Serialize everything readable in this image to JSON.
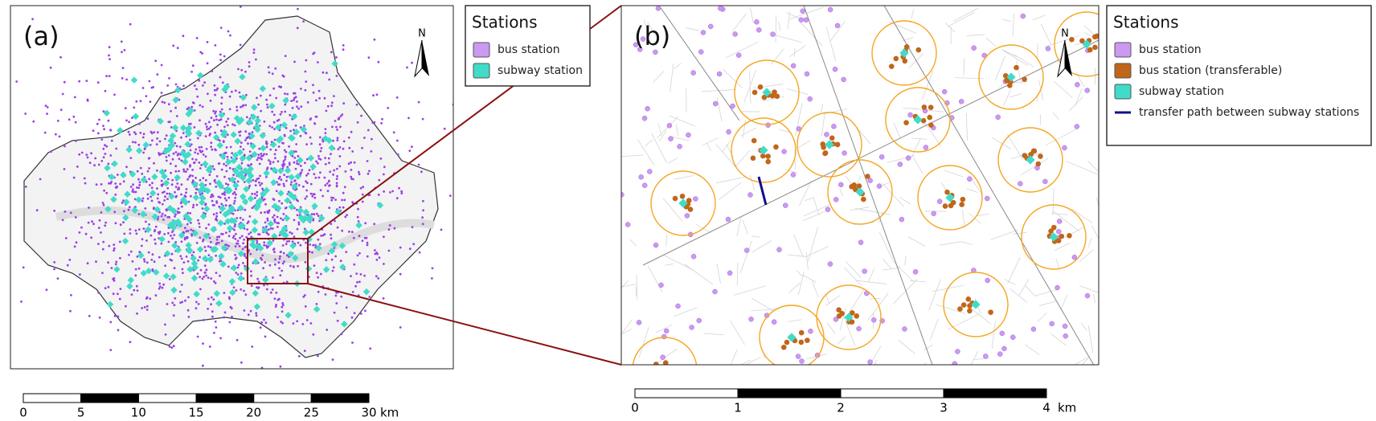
{
  "panels": [
    {
      "label": "(a)",
      "north": "N",
      "legend": {
        "title": "Stations",
        "items": [
          {
            "label": "bus station",
            "color": "#cc99f0",
            "shape": "box"
          },
          {
            "label": "subway station",
            "color": "#40dcc8",
            "shape": "box"
          }
        ]
      },
      "scale_bar": {
        "ticks": [
          0,
          5,
          10,
          15,
          20,
          25,
          30
        ],
        "unit": "km"
      }
    },
    {
      "label": "(b)",
      "north": "N",
      "legend": {
        "title": "Stations",
        "items": [
          {
            "label": "bus station",
            "color": "#cc99f0",
            "shape": "box"
          },
          {
            "label": "bus station (transferable)",
            "color": "#c0661a",
            "shape": "box"
          },
          {
            "label": "subway station",
            "color": "#40dcc8",
            "shape": "box"
          },
          {
            "label": "transfer path between subway stations",
            "color": "#10108a",
            "shape": "line"
          }
        ]
      },
      "scale_bar": {
        "ticks": [
          0,
          1,
          2,
          3,
          4
        ],
        "unit": "km"
      }
    }
  ]
}
